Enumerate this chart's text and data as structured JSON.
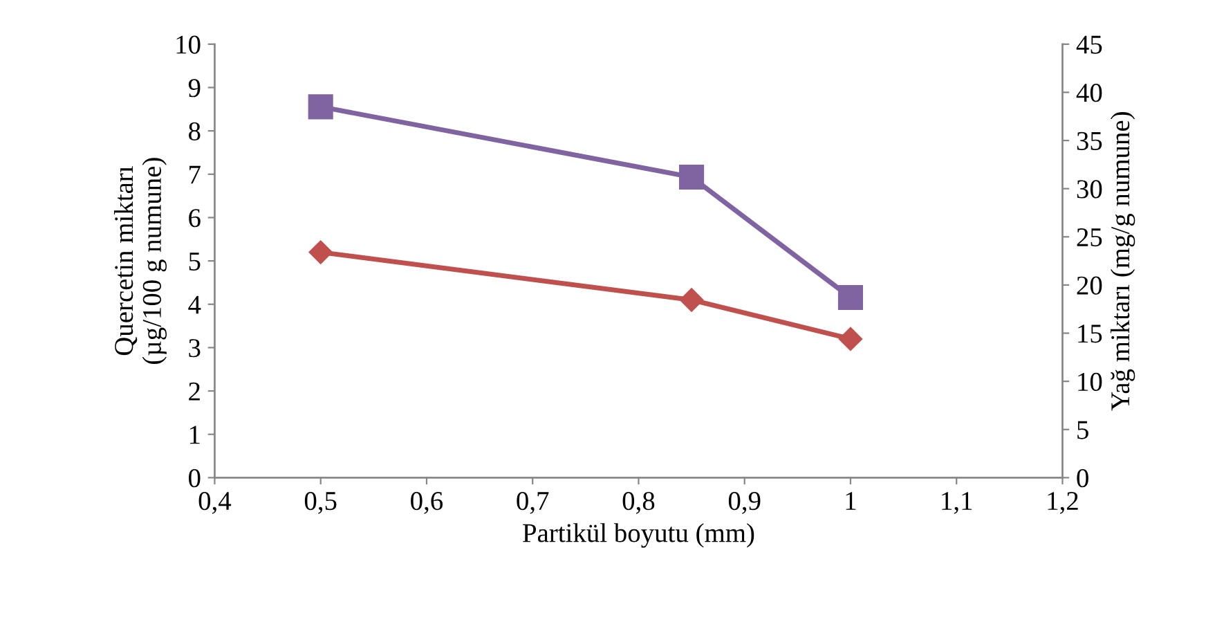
{
  "chart_data": {
    "type": "line",
    "xlabel": "Partikül boyutu (mm)",
    "ylabel": "Quercetin miktarı\n(µg/100 g numune)",
    "y2label": "Yağ miktarı (mg/g numune)",
    "x": [
      0.5,
      0.85,
      1
    ],
    "series": [
      {
        "color": "#c0504d",
        "values": [
          5.2,
          4.1,
          3.2
        ],
        "marker": "diamond"
      },
      {
        "color": "#8064a2",
        "values": [
          38.5,
          31.2,
          18.7
        ],
        "marker": "square",
        "axis": "y2"
      }
    ],
    "xlim": [
      0.4,
      1.2
    ],
    "xticks": [
      {
        "value": 0.4,
        "label": "0,4"
      },
      {
        "value": 0.5,
        "label": "0,5"
      },
      {
        "value": 0.6,
        "label": "0,6"
      },
      {
        "value": 0.7,
        "label": "0,7"
      },
      {
        "value": 0.8,
        "label": "0,8"
      },
      {
        "value": 0.9,
        "label": "0,9"
      },
      {
        "value": 1,
        "label": "1"
      },
      {
        "value": 1.1,
        "label": "1,1"
      },
      {
        "value": 1.2,
        "label": "1,2"
      }
    ],
    "ylim": [
      0,
      10
    ],
    "yticks": [
      0,
      1,
      2,
      3,
      4,
      5,
      6,
      7,
      8,
      9,
      10
    ],
    "y2lim": [
      0,
      45
    ],
    "y2ticks": [
      0,
      5,
      10,
      15,
      20,
      25,
      30,
      35,
      40,
      45
    ],
    "line_style": "solid",
    "grid": false,
    "legend": false
  }
}
